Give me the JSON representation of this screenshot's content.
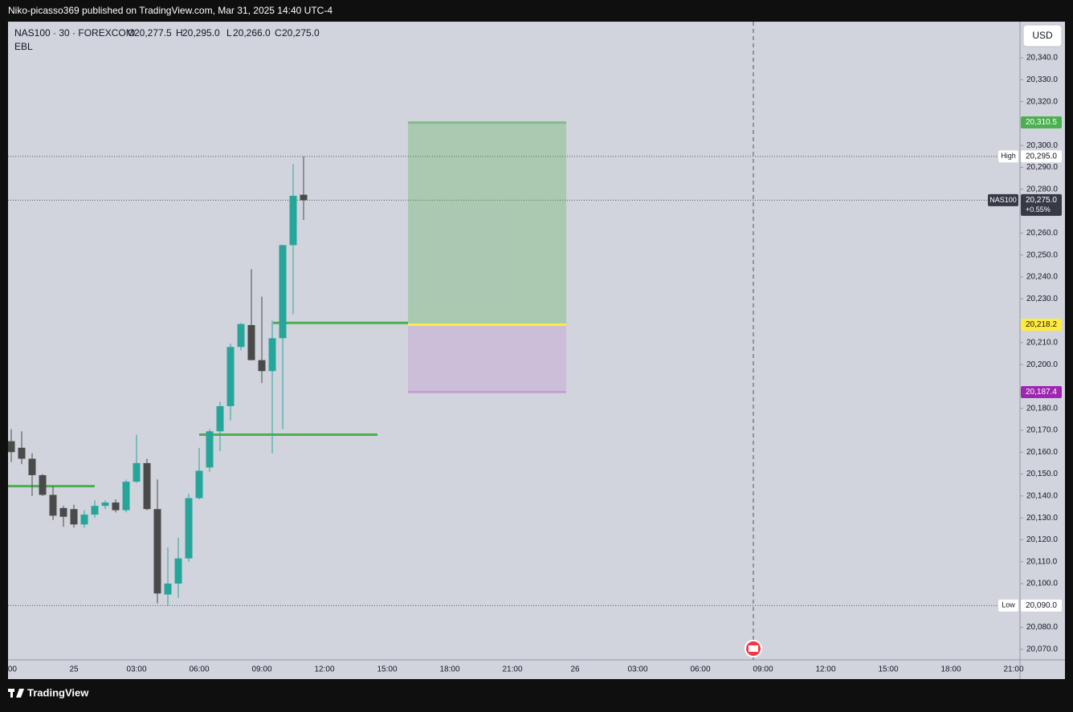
{
  "header": {
    "text": "Niko-picasso369 published on TradingView.com, Mar 31, 2025 14:40 UTC-4"
  },
  "footer": {
    "brand": "TradingView"
  },
  "chart_data": {
    "type": "candlestick",
    "symbol": "NAS100 · 30 · FOREXCOM",
    "legend": [
      {
        "key": "O",
        "label": "20,277.5"
      },
      {
        "key": "H",
        "label": "20,295.0"
      },
      {
        "key": "L",
        "label": "20,266.0"
      },
      {
        "key": "C",
        "label": "20,275.0"
      }
    ],
    "indicator": "EBL",
    "currency": "USD",
    "up_color": "#26a69a",
    "down_color": "#4a4a4a",
    "open": [
      20165,
      20162,
      20157,
      20149.5,
      20140.5,
      20134.5,
      20134,
      20127,
      20131.5,
      20135.5,
      20137,
      20133.5,
      20146.5,
      20155,
      20134,
      20095,
      20100,
      20111.5,
      20139,
      20153,
      20169.5,
      20181,
      20208,
      20218,
      20202,
      20197,
      20212,
      20254.5,
      20277.5
    ],
    "high": [
      20170.5,
      20169.5,
      20159.5,
      20150,
      20144.5,
      20135.5,
      20136,
      20133.5,
      20138,
      20138,
      20138.5,
      20147.5,
      20168,
      20157,
      20147.5,
      20116.5,
      20121,
      20141,
      20162,
      20170.5,
      20183,
      20209.5,
      20219,
      20243.5,
      20231,
      20220,
      20254.5,
      20291.5,
      20295
    ],
    "low": [
      20155.5,
      20154.5,
      20140,
      20140,
      20129,
      20126,
      20125.5,
      20125.5,
      20130,
      20134,
      20132.5,
      20132.5,
      20146,
      20133.5,
      20091,
      20090,
      20093.5,
      20110,
      20138.5,
      20151,
      20160.5,
      20174.5,
      20206.5,
      20202,
      20191.5,
      20159.5,
      20170.5,
      20223,
      20266
    ],
    "close": [
      20160,
      20157,
      20149.5,
      20140.5,
      20131,
      20130.5,
      20127,
      20131.5,
      20135.5,
      20137,
      20133.5,
      20146.5,
      20155,
      20134,
      20095.5,
      20100,
      20111.5,
      20139,
      20151.5,
      20169.5,
      20181,
      20208,
      20218.5,
      20202,
      20197,
      20212,
      20254.5,
      20277,
      20275
    ],
    "xticks": [
      ":00",
      "25",
      "03:00",
      "06:00",
      "09:00",
      "12:00",
      "15:00",
      "18:00",
      "21:00",
      "26",
      "03:00",
      "06:00",
      "09:00",
      "12:00",
      "15:00",
      "18:00",
      "21:00"
    ],
    "ylim": [
      20065.2,
      20356.5
    ],
    "yticks": [
      {
        "value": 20340,
        "label": "20,340.0"
      },
      {
        "value": 20330,
        "label": "20,330.0"
      },
      {
        "value": 20320,
        "label": "20,320.0"
      },
      {
        "value": 20300,
        "label": "20,300.0"
      },
      {
        "value": 20290,
        "label": "20,290.0"
      },
      {
        "value": 20280,
        "label": "20,280.0"
      },
      {
        "value": 20260,
        "label": "20,260.0"
      },
      {
        "value": 20250,
        "label": "20,250.0"
      },
      {
        "value": 20240,
        "label": "20,240.0"
      },
      {
        "value": 20230,
        "label": "20,230.0"
      },
      {
        "value": 20210,
        "label": "20,210.0"
      },
      {
        "value": 20200,
        "label": "20,200.0"
      },
      {
        "value": 20180,
        "label": "20,180.0"
      },
      {
        "value": 20170,
        "label": "20,170.0"
      },
      {
        "value": 20160,
        "label": "20,160.0"
      },
      {
        "value": 20150,
        "label": "20,150.0"
      },
      {
        "value": 20140,
        "label": "20,140.0"
      },
      {
        "value": 20130,
        "label": "20,130.0"
      },
      {
        "value": 20120,
        "label": "20,120.0"
      },
      {
        "value": 20110,
        "label": "20,110.0"
      },
      {
        "value": 20100,
        "label": "20,100.0"
      },
      {
        "value": 20080,
        "label": "20,080.0"
      },
      {
        "value": 20070,
        "label": "20,070.0"
      }
    ],
    "levels": [
      20144.5,
      20168,
      20219
    ],
    "level_color": "#4caf50",
    "position": {
      "target": {
        "value": 20310.5,
        "label": "20,310.5"
      },
      "entry": {
        "value": 20218.2,
        "label": "20,218.2"
      },
      "stop": {
        "value": 20187.4,
        "label": "20,187.4"
      }
    },
    "high_line": {
      "name": "High",
      "value": 20295,
      "label": "20,295.0"
    },
    "last_price": {
      "name": "NAS100",
      "value": 20275,
      "label": "20,275.0",
      "change": "+0.55%"
    },
    "low_line": {
      "name": "Low",
      "value": 20090,
      "label": "20,090.0"
    }
  }
}
